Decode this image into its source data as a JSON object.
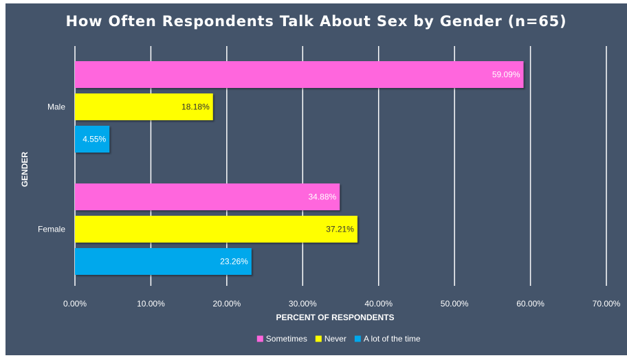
{
  "chart_data": {
    "type": "bar",
    "orientation": "horizontal",
    "title": "How Often Respondents Talk About Sex by Gender (n=65)",
    "xlabel": "PERCENT OF RESPONDENTS",
    "ylabel": "GENDER",
    "categories": [
      "Male",
      "Female"
    ],
    "series": [
      {
        "name": "Sometimes",
        "color": "#ff66dd",
        "values": [
          59.09,
          34.88
        ],
        "labels": [
          "59.09%",
          "34.88%"
        ],
        "label_color": "#ffffff"
      },
      {
        "name": "Never",
        "color": "#ffff00",
        "values": [
          18.18,
          37.21
        ],
        "labels": [
          "18.18%",
          "37.21%"
        ],
        "label_color": "#333333"
      },
      {
        "name": "A lot of the time",
        "color": "#00a8ec",
        "values": [
          4.55,
          23.26
        ],
        "labels": [
          "4.55%",
          "23.26%"
        ],
        "label_color": "#ffffff"
      }
    ],
    "xlim": [
      0,
      70
    ],
    "xticks": [
      0,
      10,
      20,
      30,
      40,
      50,
      60,
      70
    ],
    "xtick_labels": [
      "0.00%",
      "10.00%",
      "20.00%",
      "30.00%",
      "40.00%",
      "50.00%",
      "60.00%",
      "70.00%"
    ],
    "grid": "vertical",
    "legend_position": "bottom",
    "background_color": "#44546a"
  }
}
